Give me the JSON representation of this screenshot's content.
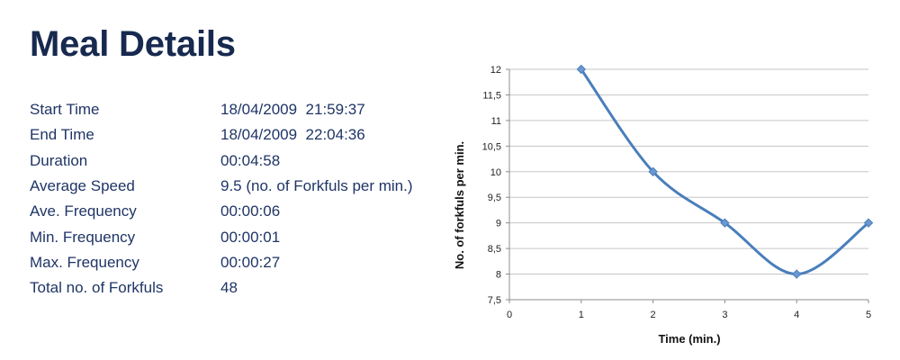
{
  "page": {
    "title": "Meal Details"
  },
  "details": [
    {
      "label": "Start Time",
      "value": "18/04/2009  21:59:37"
    },
    {
      "label": "End Time",
      "value": "18/04/2009  22:04:36"
    },
    {
      "label": "Duration",
      "value": "00:04:58"
    },
    {
      "label": "Average Speed",
      "value": "9.5 (no. of Forkfuls per min.)"
    },
    {
      "label": "Ave. Frequency",
      "value": "00:00:06"
    },
    {
      "label": "Min. Frequency",
      "value": "00:00:01"
    },
    {
      "label": "Max. Frequency",
      "value": "00:00:27"
    },
    {
      "label": "Total no. of Forkfuls",
      "value": "48"
    }
  ],
  "chart_data": {
    "type": "line",
    "title": "",
    "xlabel": "Time (min.)",
    "ylabel": "No. of forkfuls per min.",
    "x": [
      1,
      2,
      3,
      4,
      5
    ],
    "series": [
      {
        "values": [
          12,
          10,
          9,
          8,
          9
        ]
      }
    ],
    "xlim": [
      0,
      5
    ],
    "ylim": [
      7.5,
      12
    ],
    "x_ticks": [
      "0",
      "1",
      "2",
      "3",
      "4",
      "5"
    ],
    "y_ticks": [
      "7,5",
      "8",
      "8,5",
      "9",
      "9,5",
      "10",
      "10,5",
      "11",
      "11,5",
      "12"
    ],
    "smoothed": true,
    "marker": "diamond",
    "grid": true,
    "legend": "none",
    "colors": {
      "line": "#4a7ebb",
      "marker": "#6b97d0",
      "grid": "#c6c6c6",
      "axis": "#8c8c8c",
      "text": "#222222"
    }
  }
}
